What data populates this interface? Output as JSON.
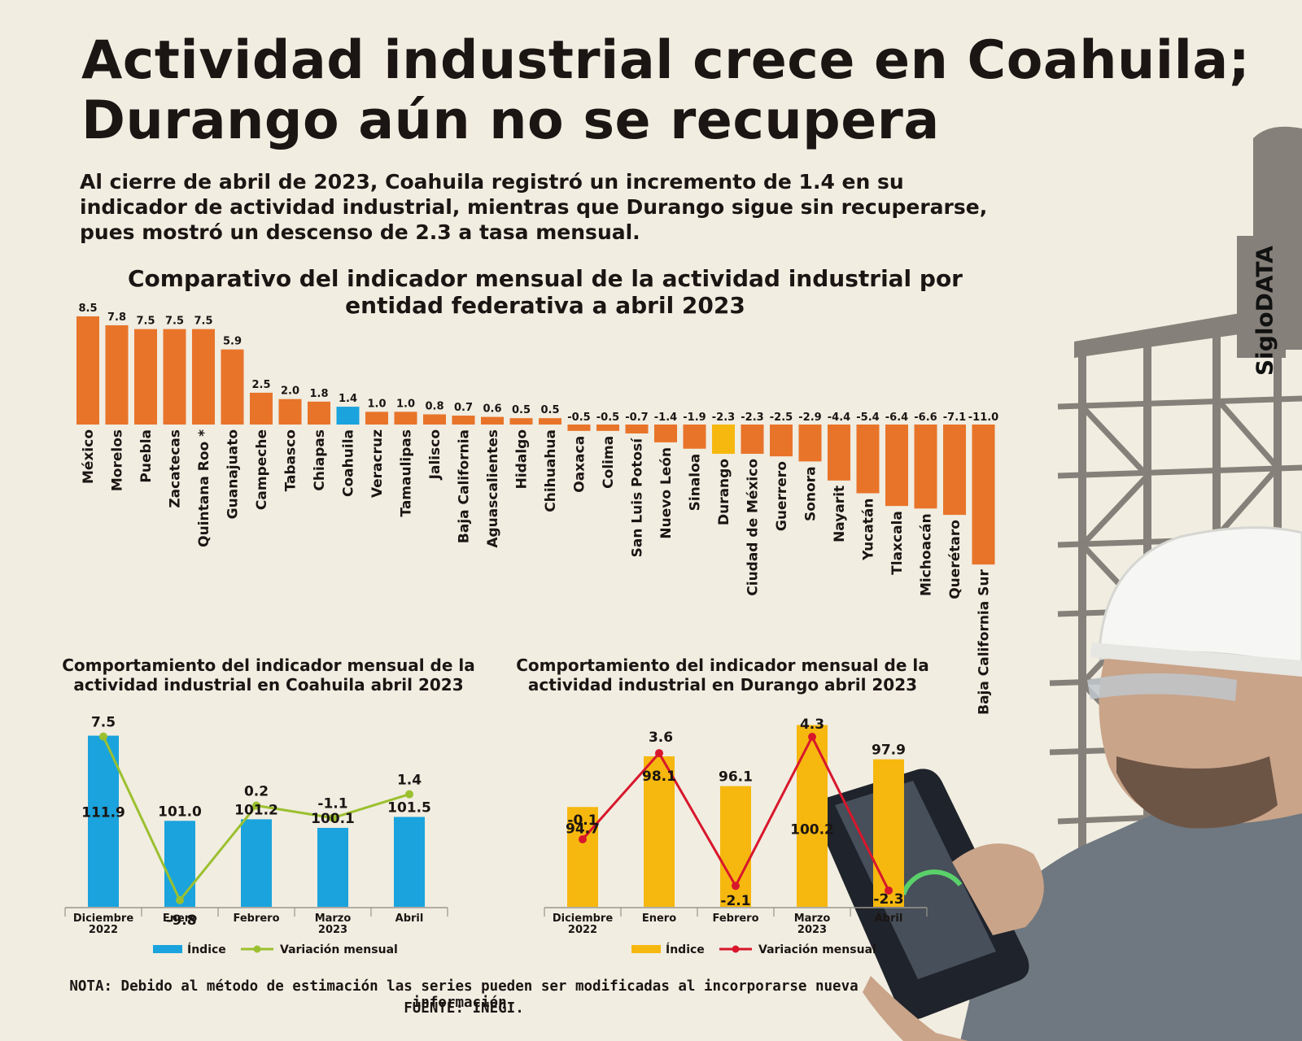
{
  "title": {
    "line1": "Actividad industrial crece en Coahuila;",
    "line2": "Durango aún no se recupera"
  },
  "subtitle": {
    "line1": "Al cierre de abril de 2023, Coahuila registró un incremento de 1.4 en su",
    "line2": "indicador de actividad industrial, mientras que Durango sigue sin recuperarse,",
    "line3": "pues mostró un descenso de 2.3 a tasa mensual."
  },
  "brand": "SigloDATA",
  "colors": {
    "orange": "#e8742a",
    "blue": "#1aa3dd",
    "yellow": "#f6b80f",
    "green": "#9bc02f",
    "red": "#d8172c",
    "text": "#1b1513",
    "background": "#f1ede1"
  },
  "chart_data": [
    {
      "type": "bar",
      "title_line1": "Comparativo del indicador mensual de la actividad industrial por",
      "title_line2": "entidad federativa a abril 2023",
      "categories": [
        "México",
        "Morelos",
        "Puebla",
        "Zacatecas",
        "Quintana Roo *",
        "Guanajuato",
        "Campeche",
        "Tabasco",
        "Chiapas",
        "Coahuila",
        "Veracruz",
        "Tamaulipas",
        "Jalisco",
        "Baja California",
        "Aguascalientes",
        "Hidalgo",
        "Chihuahua",
        "Oaxaca",
        "Colima",
        "San Luis Potosí",
        "Nuevo León",
        "Sinaloa",
        "Durango",
        "Ciudad de México",
        "Guerrero",
        "Sonora",
        "Nayarit",
        "Yucatán",
        "Tlaxcala",
        "Michoacán",
        "Querétaro",
        "Baja California Sur"
      ],
      "values": [
        8.5,
        7.8,
        7.5,
        7.5,
        7.5,
        5.9,
        2.5,
        2.0,
        1.8,
        1.4,
        1.0,
        1.0,
        0.8,
        0.7,
        0.6,
        0.5,
        0.5,
        -0.5,
        -0.5,
        -0.7,
        -1.4,
        -1.9,
        -2.3,
        -2.3,
        -2.5,
        -2.9,
        -4.4,
        -5.4,
        -6.4,
        -6.6,
        -7.1,
        -11.0
      ],
      "value_labels": [
        "8.5",
        "7.8",
        "7.5",
        "7.5",
        "7.5",
        "5.9",
        "2.5",
        "2.0",
        "1.8",
        "1.4",
        "1.0",
        "1.0",
        "0.8",
        "0.7",
        "0.6",
        "0.5",
        "0.5",
        "-0.5",
        "-0.5",
        "-0.7",
        "-1.4",
        "-1.9",
        "-2.3",
        "-2.3",
        "-2.5",
        "-2.9",
        "-4.4",
        "-5.4",
        "-6.4",
        "-6.6",
        "-7.1",
        "-11.0"
      ],
      "highlight": {
        "Coahuila": "blue",
        "Durango": "yellow"
      },
      "ylim": [
        -11,
        8.5
      ]
    },
    {
      "type": "bar+line",
      "title_line1": "Comportamiento del indicador mensual de la",
      "title_line2": "actividad industrial en Coahuila abril 2023",
      "categories": [
        [
          "Diciembre",
          "2022"
        ],
        [
          "Enero"
        ],
        [
          "Febrero"
        ],
        [
          "Marzo",
          "2023"
        ],
        [
          "Abril"
        ]
      ],
      "series": [
        {
          "name": "Índice",
          "type": "bar",
          "values": [
            111.9,
            101.0,
            101.2,
            100.1,
            101.5
          ],
          "labels": [
            "111.9",
            "101.0",
            "101.2",
            "100.1",
            "101.5"
          ]
        },
        {
          "name": "Variación mensual",
          "type": "line",
          "values": [
            7.5,
            -9.8,
            0.2,
            -1.1,
            1.4
          ],
          "labels": [
            "7.5",
            "-9.8",
            "0.2",
            "-1.1",
            "1.4"
          ]
        }
      ],
      "bar_ylim": [
        90,
        113
      ],
      "line_ylim": [
        -10.5,
        8.5
      ]
    },
    {
      "type": "bar+line",
      "title_line1": "Comportamiento del indicador mensual de la",
      "title_line2": "actividad industrial en Durango abril 2023",
      "categories": [
        [
          "Diciembre",
          "2022"
        ],
        [
          "Enero"
        ],
        [
          "Febrero"
        ],
        [
          "Marzo",
          "2023"
        ],
        [
          "Abril"
        ]
      ],
      "series": [
        {
          "name": "Índice",
          "type": "bar",
          "values": [
            94.7,
            98.1,
            96.1,
            100.2,
            97.9
          ],
          "labels": [
            "94.7",
            "98.1",
            "96.1",
            "100.2",
            "97.9"
          ]
        },
        {
          "name": "Variación mensual",
          "type": "line",
          "values": [
            -0.1,
            3.6,
            -2.1,
            4.3,
            -2.3
          ],
          "labels": [
            "-0.1",
            "3.6",
            "-2.1",
            "4.3",
            "-2.3"
          ]
        }
      ],
      "bar_ylim": [
        88,
        100.5
      ],
      "line_ylim": [
        -3,
        5
      ]
    }
  ],
  "footer": {
    "note": "NOTA: Debido al método de estimación las series pueden ser modificadas al incorporarse nueva información.",
    "source": "FUENTE: INEGI."
  }
}
